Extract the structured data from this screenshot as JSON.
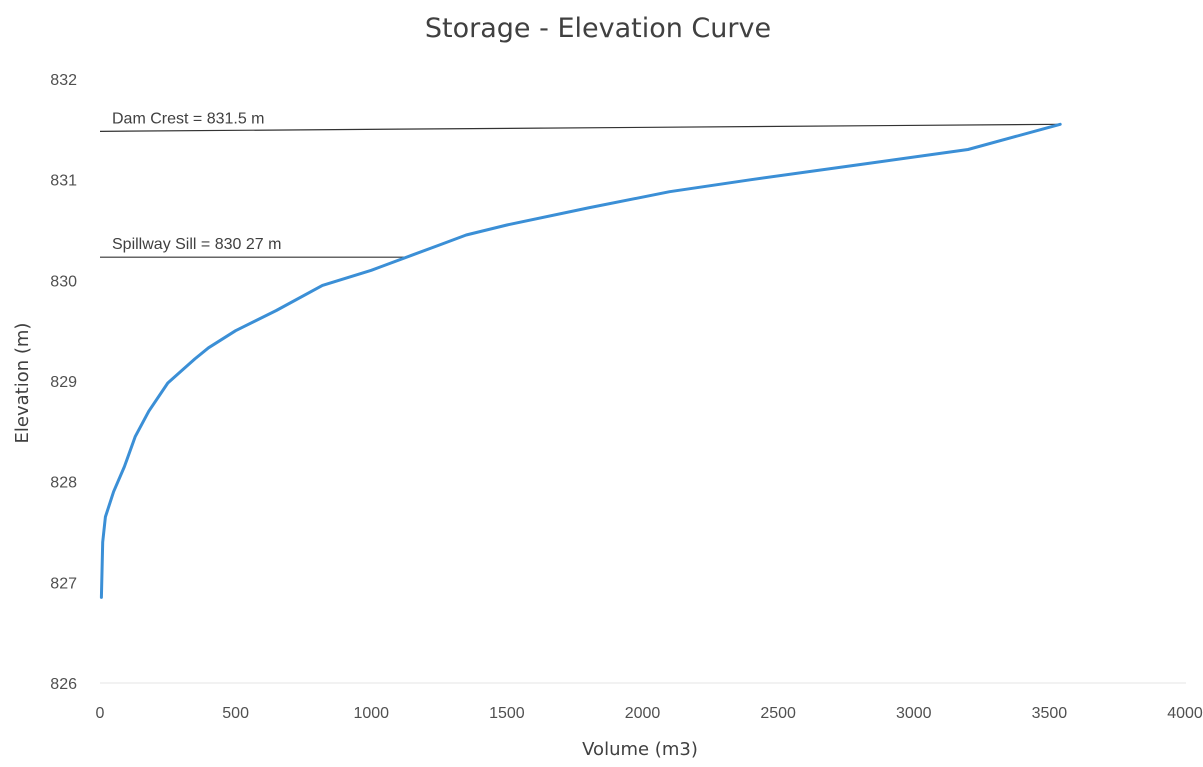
{
  "chart_data": {
    "type": "line",
    "title": "Storage - Elevation Curve",
    "xlabel": "Volume (m3)",
    "ylabel": "Elevation (m)",
    "xlim": [
      0,
      4000
    ],
    "ylim": [
      826,
      832
    ],
    "x_ticks": [
      "0",
      "500",
      "1000",
      "1500",
      "2000",
      "2500",
      "3000",
      "3500",
      "4000"
    ],
    "y_ticks": [
      "826",
      "827",
      "828",
      "829",
      "830",
      "831",
      "832"
    ],
    "grid": false,
    "legend": "none",
    "series": [
      {
        "color": "#3b8fd6",
        "x": [
          5,
          10,
          20,
          50,
          90,
          130,
          180,
          250,
          300,
          350,
          400,
          500,
          650,
          820,
          1000,
          1150,
          1250,
          1350,
          1500,
          1800,
          2100,
          2400,
          2800,
          3200,
          3540
        ],
        "y": [
          826.85,
          827.4,
          827.65,
          827.9,
          828.15,
          828.45,
          828.7,
          828.98,
          829.1,
          829.22,
          829.33,
          829.5,
          829.7,
          829.95,
          830.1,
          830.25,
          830.35,
          830.45,
          830.55,
          830.72,
          830.88,
          831.0,
          831.15,
          831.3,
          831.55
        ]
      }
    ],
    "annotations": [
      {
        "label": "Dam Crest = 831.5 m",
        "x1": 0,
        "y1": 831.48,
        "x2": 3540,
        "y2": 831.55,
        "color": "#333333"
      },
      {
        "label": "Spillway Sill = 830 27 m",
        "x1": 0,
        "y1": 830.23,
        "x2": 1130,
        "y2": 830.23,
        "color": "#333333"
      }
    ]
  }
}
